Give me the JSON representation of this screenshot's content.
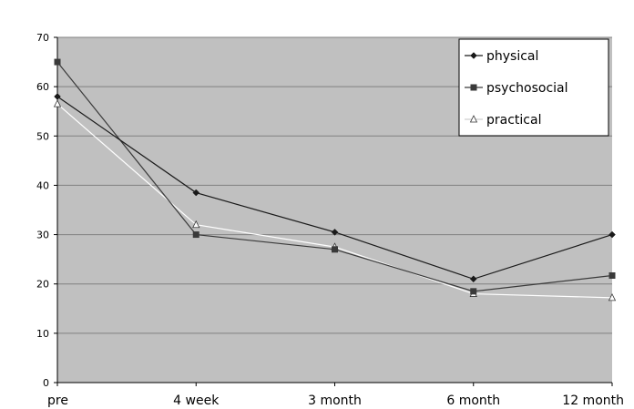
{
  "chart_data": {
    "type": "line",
    "title": "",
    "xlabel": "",
    "ylabel": "",
    "categories": [
      "pre",
      "4 week",
      "3 month",
      "6 month",
      "12 month"
    ],
    "ylim": [
      0,
      70
    ],
    "yticks": [
      0,
      10,
      20,
      30,
      40,
      50,
      60,
      70
    ],
    "grid": true,
    "legend_position": "top-right",
    "series": [
      {
        "name": "physical",
        "values": [
          58,
          38.5,
          30.5,
          21,
          30
        ],
        "color": "#1a1a1a",
        "marker": "diamond"
      },
      {
        "name": "psychosocial",
        "values": [
          65,
          30,
          27,
          18.5,
          21.7
        ],
        "color": "#3a3a3a",
        "marker": "square"
      },
      {
        "name": "practical",
        "values": [
          56.5,
          32,
          27.5,
          18,
          17.2
        ],
        "color": "#ffffff",
        "marker": "triangle"
      }
    ]
  },
  "colors": {
    "plot_background": "#c0c0c0",
    "gridline": "#808080",
    "axis": "#000000"
  }
}
